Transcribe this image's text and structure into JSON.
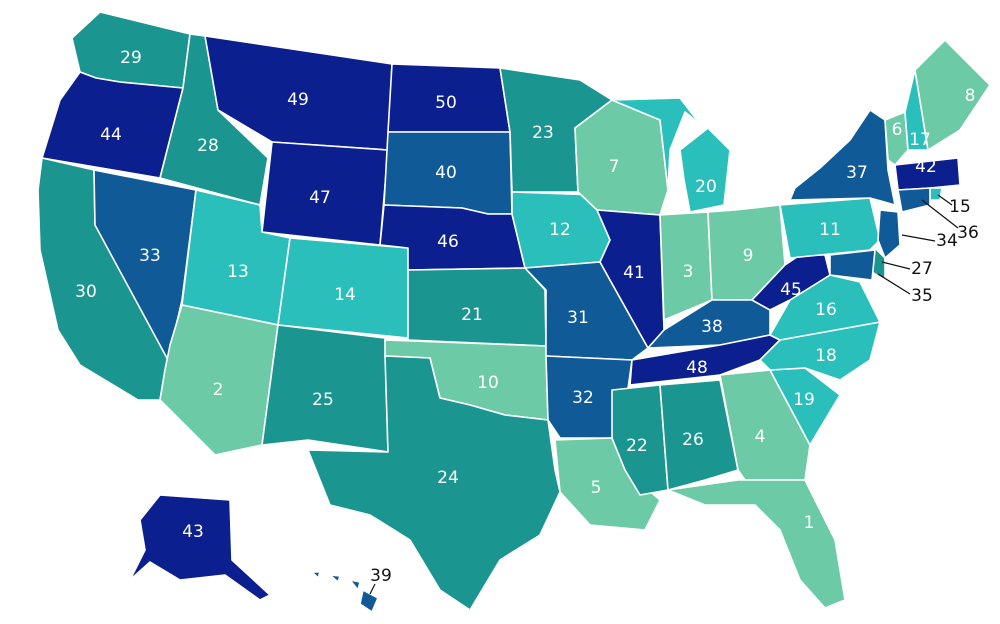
{
  "legend_palette": {
    "tier1": "#6ccaa7",
    "tier2": "#2abfba",
    "tier3": "#1a9590",
    "tier4": "#0f5a97",
    "tier5": "#0b1f8e"
  },
  "states": [
    {
      "id": "WA",
      "rank": "29",
      "tier": "tier3"
    },
    {
      "id": "OR",
      "rank": "44",
      "tier": "tier5"
    },
    {
      "id": "CA",
      "rank": "30",
      "tier": "tier3"
    },
    {
      "id": "ID",
      "rank": "28",
      "tier": "tier3"
    },
    {
      "id": "NV",
      "rank": "33",
      "tier": "tier4"
    },
    {
      "id": "MT",
      "rank": "49",
      "tier": "tier5"
    },
    {
      "id": "WY",
      "rank": "47",
      "tier": "tier5"
    },
    {
      "id": "UT",
      "rank": "13",
      "tier": "tier2"
    },
    {
      "id": "AZ",
      "rank": "2",
      "tier": "tier1"
    },
    {
      "id": "CO",
      "rank": "14",
      "tier": "tier2"
    },
    {
      "id": "NM",
      "rank": "25",
      "tier": "tier3"
    },
    {
      "id": "ND",
      "rank": "50",
      "tier": "tier5"
    },
    {
      "id": "SD",
      "rank": "40",
      "tier": "tier4"
    },
    {
      "id": "NE",
      "rank": "46",
      "tier": "tier5"
    },
    {
      "id": "KS",
      "rank": "21",
      "tier": "tier3"
    },
    {
      "id": "OK",
      "rank": "10",
      "tier": "tier1"
    },
    {
      "id": "TX",
      "rank": "24",
      "tier": "tier3"
    },
    {
      "id": "MN",
      "rank": "23",
      "tier": "tier3"
    },
    {
      "id": "IA",
      "rank": "12",
      "tier": "tier2"
    },
    {
      "id": "MO",
      "rank": "31",
      "tier": "tier4"
    },
    {
      "id": "AR",
      "rank": "32",
      "tier": "tier4"
    },
    {
      "id": "LA",
      "rank": "5",
      "tier": "tier1"
    },
    {
      "id": "WI",
      "rank": "7",
      "tier": "tier1"
    },
    {
      "id": "IL",
      "rank": "41",
      "tier": "tier5"
    },
    {
      "id": "MI",
      "rank": "20",
      "tier": "tier2"
    },
    {
      "id": "IN",
      "rank": "3",
      "tier": "tier1"
    },
    {
      "id": "OH",
      "rank": "9",
      "tier": "tier1"
    },
    {
      "id": "KY",
      "rank": "38",
      "tier": "tier4"
    },
    {
      "id": "TN",
      "rank": "48",
      "tier": "tier5"
    },
    {
      "id": "MS",
      "rank": "22",
      "tier": "tier3"
    },
    {
      "id": "AL",
      "rank": "26",
      "tier": "tier3"
    },
    {
      "id": "GA",
      "rank": "4",
      "tier": "tier1"
    },
    {
      "id": "FL",
      "rank": "1",
      "tier": "tier1"
    },
    {
      "id": "SC",
      "rank": "19",
      "tier": "tier2"
    },
    {
      "id": "NC",
      "rank": "18",
      "tier": "tier2"
    },
    {
      "id": "VA",
      "rank": "16",
      "tier": "tier2"
    },
    {
      "id": "WV",
      "rank": "45",
      "tier": "tier5"
    },
    {
      "id": "PA",
      "rank": "11",
      "tier": "tier2"
    },
    {
      "id": "NY",
      "rank": "37",
      "tier": "tier4"
    },
    {
      "id": "VT",
      "rank": "6",
      "tier": "tier1"
    },
    {
      "id": "NH",
      "rank": "17",
      "tier": "tier2"
    },
    {
      "id": "ME",
      "rank": "8",
      "tier": "tier1"
    },
    {
      "id": "MA",
      "rank": "42",
      "tier": "tier5"
    },
    {
      "id": "RI",
      "rank": "15",
      "tier": "tier2"
    },
    {
      "id": "CT",
      "rank": "36",
      "tier": "tier4"
    },
    {
      "id": "NJ",
      "rank": "34",
      "tier": "tier4"
    },
    {
      "id": "DE",
      "rank": "27",
      "tier": "tier3"
    },
    {
      "id": "MD",
      "rank": "35",
      "tier": "tier4"
    },
    {
      "id": "AK",
      "rank": "43",
      "tier": "tier5"
    },
    {
      "id": "HI",
      "rank": "39",
      "tier": "tier4"
    }
  ]
}
